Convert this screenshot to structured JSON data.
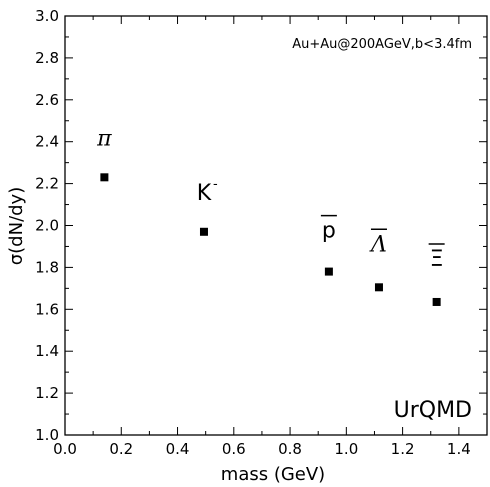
{
  "chart_data": {
    "type": "scatter",
    "title": "",
    "xlabel": "mass (GeV)",
    "ylabel": "σ(dN/dy)",
    "xlim": [
      0.0,
      1.5
    ],
    "ylim": [
      1.0,
      3.0
    ],
    "x_ticks": [
      "0.0",
      "0.2",
      "0.4",
      "0.6",
      "0.8",
      "1.0",
      "1.2",
      "1.4"
    ],
    "y_ticks": [
      "1.0",
      "1.2",
      "1.4",
      "1.6",
      "1.8",
      "2.0",
      "2.2",
      "2.4",
      "2.6",
      "2.8",
      "3.0"
    ],
    "grid": false,
    "annotation": "Au+Au@200AGeV,b<3.4fm",
    "watermark": "UrQMD",
    "points": [
      {
        "label": "π",
        "x": 0.14,
        "y": 2.23
      },
      {
        "label": "K",
        "superscript": "-",
        "x": 0.494,
        "y": 1.97
      },
      {
        "label": "p",
        "overline": true,
        "x": 0.938,
        "y": 1.78
      },
      {
        "label": "Λ",
        "overline": true,
        "x": 1.116,
        "y": 1.705
      },
      {
        "label": "Ξ",
        "overline": true,
        "x": 1.321,
        "y": 1.635
      }
    ]
  }
}
